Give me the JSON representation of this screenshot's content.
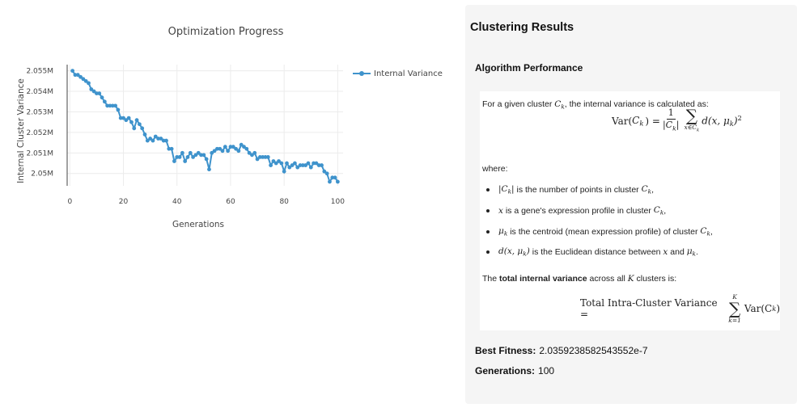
{
  "chart_data": {
    "type": "line",
    "title": "Optimization Progress",
    "xlabel": "Generations",
    "ylabel": "Internal Cluster Variance",
    "xlim": [
      -1,
      102
    ],
    "ylim": [
      2.0494,
      2.0553
    ],
    "x_ticks": [
      0,
      20,
      40,
      60,
      80,
      100
    ],
    "x_tick_labels": [
      "0",
      "20",
      "40",
      "60",
      "80",
      "100"
    ],
    "y_ticks": [
      2.05,
      2.051,
      2.052,
      2.053,
      2.054,
      2.055
    ],
    "y_tick_labels": [
      "2.05M",
      "2.051M",
      "2.052M",
      "2.053M",
      "2.054M",
      "2.055M"
    ],
    "grid": true,
    "legend_position": "top-right",
    "color": "#3f93cc",
    "series": [
      {
        "name": "Internal Variance",
        "x": [
          1,
          2,
          3,
          4,
          5,
          6,
          7,
          8,
          9,
          10,
          11,
          12,
          13,
          14,
          15,
          16,
          17,
          18,
          19,
          20,
          21,
          22,
          23,
          24,
          25,
          26,
          27,
          28,
          29,
          30,
          31,
          32,
          33,
          34,
          35,
          36,
          37,
          38,
          39,
          40,
          41,
          42,
          43,
          44,
          45,
          46,
          47,
          48,
          49,
          50,
          51,
          52,
          53,
          54,
          55,
          56,
          57,
          58,
          59,
          60,
          61,
          62,
          63,
          64,
          65,
          66,
          67,
          68,
          69,
          70,
          71,
          72,
          73,
          74,
          75,
          76,
          77,
          78,
          79,
          80,
          81,
          82,
          83,
          84,
          85,
          86,
          87,
          88,
          89,
          90,
          91,
          92,
          93,
          94,
          95,
          96,
          97,
          98,
          99,
          100
        ],
        "y": [
          2.055,
          2.0548,
          2.0548,
          2.0547,
          2.0546,
          2.0545,
          2.0544,
          2.0541,
          2.054,
          2.0539,
          2.0539,
          2.0537,
          2.0535,
          2.0533,
          2.0533,
          2.0533,
          2.0533,
          2.0531,
          2.0527,
          2.0527,
          2.0526,
          2.0527,
          2.0525,
          2.0522,
          2.0526,
          2.0524,
          2.0522,
          2.0519,
          2.0516,
          2.0517,
          2.0516,
          2.0518,
          2.0517,
          2.0517,
          2.0516,
          2.0516,
          2.0512,
          2.0512,
          2.0506,
          2.0508,
          2.0508,
          2.051,
          2.0506,
          2.0508,
          2.051,
          2.0508,
          2.0509,
          2.051,
          2.0509,
          2.0509,
          2.0507,
          2.0502,
          2.051,
          2.0511,
          2.0512,
          2.0512,
          2.0511,
          2.0513,
          2.0511,
          2.0513,
          2.0513,
          2.0512,
          2.0511,
          2.0514,
          2.0513,
          2.0512,
          2.051,
          2.0509,
          2.051,
          2.0507,
          2.0508,
          2.0508,
          2.0508,
          2.0508,
          2.0504,
          2.0506,
          2.0505,
          2.0506,
          2.0505,
          2.0501,
          2.0505,
          2.0503,
          2.0504,
          2.0505,
          2.0503,
          2.0504,
          2.0504,
          2.0504,
          2.0505,
          2.0503,
          2.0505,
          2.0505,
          2.0504,
          2.0504,
          2.0501,
          2.05,
          2.0496,
          2.0498,
          2.0498,
          2.0496
        ]
      }
    ]
  },
  "results": {
    "title": "Clustering Results",
    "performance_title": "Algorithm Performance",
    "intro_text": "For a given cluster",
    "intro_text_tail": ", the internal variance is calculated as:",
    "symbol_Ck": "C",
    "symbol_k": "k",
    "eq1_lhs": "Var(",
    "eq1_lhs_close": ") =",
    "eq1_frac_num": "1",
    "eq1_frac_den": "|C",
    "eq1_frac_den_close": "|",
    "eq1_sum_lower": "x∈C",
    "eq1_body": "d(x, μ",
    "eq1_body_close": ")",
    "eq1_sup": "2",
    "where_label": "where:",
    "bullet1_math": "|C",
    "bullet1_math_close": "|",
    "bullet1_text": " is the number of points in cluster ",
    "bullet2_math": "x",
    "bullet2_text": " is a gene's expression profile in cluster ",
    "bullet3_math": "μ",
    "bullet3_text": " is the centroid (mean expression profile) of cluster ",
    "bullet4_math": "d(x, μ",
    "bullet4_math_close": ")",
    "bullet4_text": " is the Euclidean distance between ",
    "bullet4_and": " and ",
    "comma": ",",
    "period": ".",
    "total_prefix": "The ",
    "total_bold": "total internal variance",
    "total_mid": " across all ",
    "total_K": "K",
    "total_suffix": " clusters is:",
    "eq2_lhs": "Total Intra-Cluster Variance =",
    "eq2_upper": "K",
    "eq2_lower": "k=1",
    "eq2_body": "Var(C",
    "eq2_body_close": ")",
    "best_fitness_label": "Best Fitness:",
    "best_fitness_value": "2.0359238582543552e-7",
    "generations_label": "Generations:",
    "generations_value": "100"
  }
}
